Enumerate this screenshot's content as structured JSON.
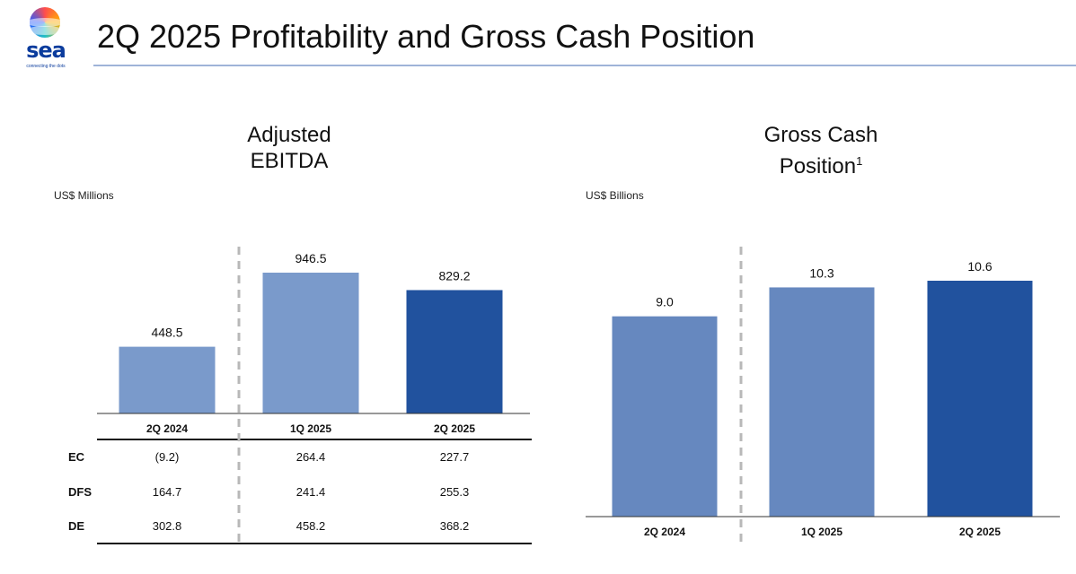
{
  "header": {
    "title": "2Q 2025 Profitability and Gross Cash Position",
    "logo_text": "sea",
    "logo_tagline": "connecting the dots"
  },
  "colors": {
    "bar_light": "#7a9acb",
    "bar_mid": "#6688bf",
    "bar_dark": "#21529e",
    "divider": "#b8b8b8"
  },
  "chart_data": [
    {
      "type": "bar",
      "title_line1": "Adjusted",
      "title_line2": "EBITDA",
      "unit_label": "US$ Millions",
      "categories": [
        "2Q 2024",
        "1Q 2025",
        "2Q 2025"
      ],
      "values": [
        448.5,
        946.5,
        829.2
      ],
      "value_labels": [
        "448.5",
        "946.5",
        "829.2"
      ],
      "ylim": [
        0,
        946.5
      ],
      "table": {
        "rows": [
          {
            "label": "EC",
            "values": [
              "(9.2)",
              "264.4",
              "227.7"
            ]
          },
          {
            "label": "DFS",
            "values": [
              "164.7",
              "241.4",
              "255.3"
            ]
          },
          {
            "label": "DE",
            "values": [
              "302.8",
              "458.2",
              "368.2"
            ]
          }
        ]
      }
    },
    {
      "type": "bar",
      "title_line1": "Gross Cash",
      "title_line2": "Position",
      "title_superscript": "1",
      "unit_label": "US$ Billions",
      "categories": [
        "2Q 2024",
        "1Q 2025",
        "2Q 2025"
      ],
      "values": [
        9.0,
        10.3,
        10.6
      ],
      "value_labels": [
        "9.0",
        "10.3",
        "10.6"
      ],
      "ylim": [
        0,
        10.6
      ]
    }
  ]
}
